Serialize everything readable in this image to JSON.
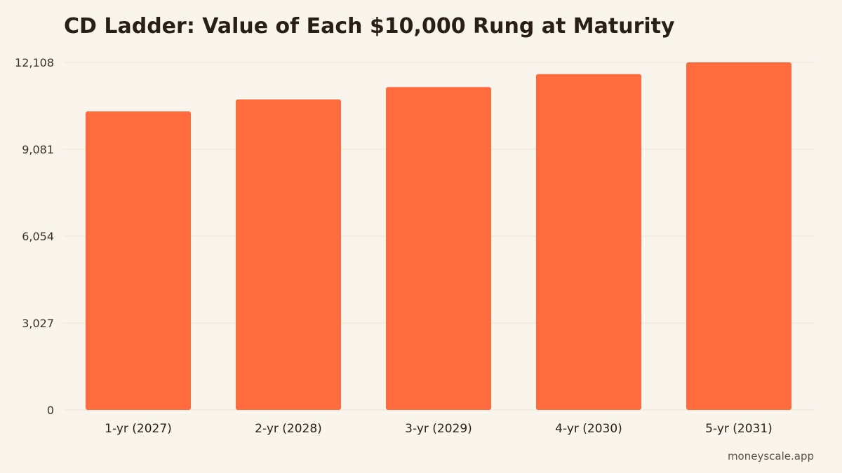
{
  "chart_data": {
    "type": "bar",
    "title": "CD Ladder: Value of Each $10,000 Rung at Maturity",
    "categories": [
      "1-yr (2027)",
      "2-yr (2028)",
      "3-yr (2029)",
      "4-yr (2030)",
      "5-yr (2031)"
    ],
    "values": [
      10400,
      10816,
      11249,
      11699,
      12167
    ],
    "ylim": [
      0,
      12108
    ],
    "yticks": [
      "0",
      "3,027",
      "6,054",
      "9,081",
      "12,108"
    ],
    "ytick_values": [
      0,
      3027,
      6054,
      9081,
      12108
    ],
    "xlabel": "",
    "ylabel": "",
    "grid": true,
    "colors": {
      "bar": "#ff6b3d",
      "grid": "#ece4d6",
      "background": "#faf5ec"
    }
  },
  "footer": {
    "source": "moneyscale.app"
  }
}
